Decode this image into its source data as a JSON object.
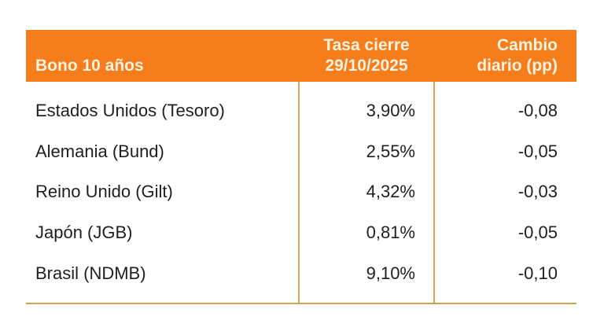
{
  "colors": {
    "header_bg": "#F57D1B",
    "header_text": "#FAF2E0",
    "body_text": "#1F1F1F",
    "divider": "#DCA55A",
    "bottom_border": "#C9A751",
    "background": "#FFFFFF"
  },
  "table": {
    "header": {
      "col1": "Bono 10 años",
      "col2": "Tasa cierre\n29/10/2025",
      "col3": "Cambio\ndiario (pp)"
    },
    "rows": [
      {
        "label": "Estados Unidos (Tesoro)",
        "rate": "3,90%",
        "change": "-0,08"
      },
      {
        "label": "Alemania (Bund)",
        "rate": "2,55%",
        "change": "-0,05"
      },
      {
        "label": "Reino Unido (Gilt)",
        "rate": "4,32%",
        "change": "-0,03"
      },
      {
        "label": "Japón (JGB)",
        "rate": "0,81%",
        "change": "-0,05"
      },
      {
        "label": "Brasil (NDMB)",
        "rate": "9,10%",
        "change": "-0,10"
      }
    ]
  },
  "chart_data": {
    "type": "table",
    "title": "Bono 10 años",
    "columns": [
      "Bono 10 años",
      "Tasa cierre 29/10/2025",
      "Cambio diario (pp)"
    ],
    "rows": [
      [
        "Estados Unidos (Tesoro)",
        "3,90%",
        "-0,08"
      ],
      [
        "Alemania (Bund)",
        "2,55%",
        "-0,05"
      ],
      [
        "Reino Unido (Gilt)",
        "4,32%",
        "-0,03"
      ],
      [
        "Japón (JGB)",
        "0,81%",
        "-0,05"
      ],
      [
        "Brasil (NDMB)",
        "9,10%",
        "-0,10"
      ]
    ]
  }
}
